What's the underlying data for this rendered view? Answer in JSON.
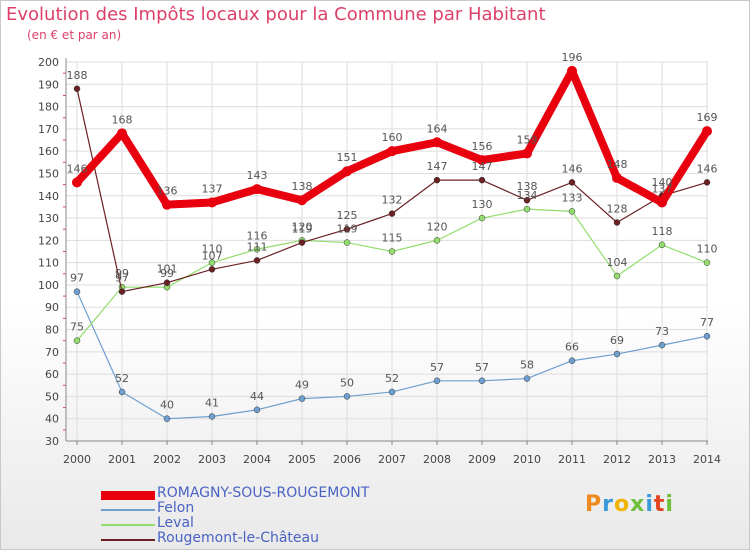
{
  "header": {
    "title": "Evolution des Impôts locaux pour la Commune par Habitant",
    "subtitle": "(en € et par an)"
  },
  "chart_data": {
    "type": "line",
    "title": "Evolution des Impôts locaux pour la Commune par Habitant",
    "ylabel": "(en € et par an)",
    "xlabel": "",
    "ylim": [
      30,
      200
    ],
    "yticks": [
      30,
      40,
      50,
      60,
      70,
      80,
      90,
      100,
      110,
      120,
      130,
      140,
      150,
      160,
      170,
      180,
      190,
      200
    ],
    "grid": true,
    "categories": [
      "2000",
      "2001",
      "2002",
      "2003",
      "2004",
      "2005",
      "2006",
      "2007",
      "2008",
      "2009",
      "2010",
      "2011",
      "2012",
      "2013",
      "2014"
    ],
    "series": [
      {
        "name": "ROMAGNY-SOUS-ROUGEMONT",
        "color": "#e8000e",
        "values": [
          146,
          168,
          136,
          137,
          143,
          138,
          151,
          160,
          164,
          156,
          159,
          196,
          148,
          137,
          169
        ]
      },
      {
        "name": "Felon",
        "color": "#6f9fcf",
        "values": [
          97,
          52,
          40,
          41,
          44,
          49,
          50,
          52,
          57,
          57,
          58,
          66,
          69,
          73,
          77
        ]
      },
      {
        "name": "Leval",
        "color": "#92dd6e",
        "values": [
          75,
          99,
          99,
          110,
          116,
          120,
          119,
          115,
          120,
          130,
          134,
          133,
          104,
          118,
          110
        ]
      },
      {
        "name": "Rougemont-le-Château",
        "color": "#6b2023",
        "values": [
          188,
          97,
          101,
          107,
          111,
          119,
          125,
          132,
          147,
          147,
          138,
          146,
          128,
          140,
          146
        ]
      }
    ],
    "legend_position": "bottom-left"
  },
  "logo": {
    "letters": [
      "P",
      "r",
      "o",
      "x",
      "i",
      "t",
      "i"
    ],
    "colors": [
      "#f08a1c",
      "#3a9ad9",
      "#f0b400",
      "#6fbf3a",
      "#3a9ad9",
      "#e2421c",
      "#6fbf3a"
    ]
  },
  "colors": {
    "title": "#dd4169",
    "axis_text": "#444444",
    "grid": "#dddddd",
    "axis": "#888888",
    "legend_text": "#4a63c4"
  }
}
